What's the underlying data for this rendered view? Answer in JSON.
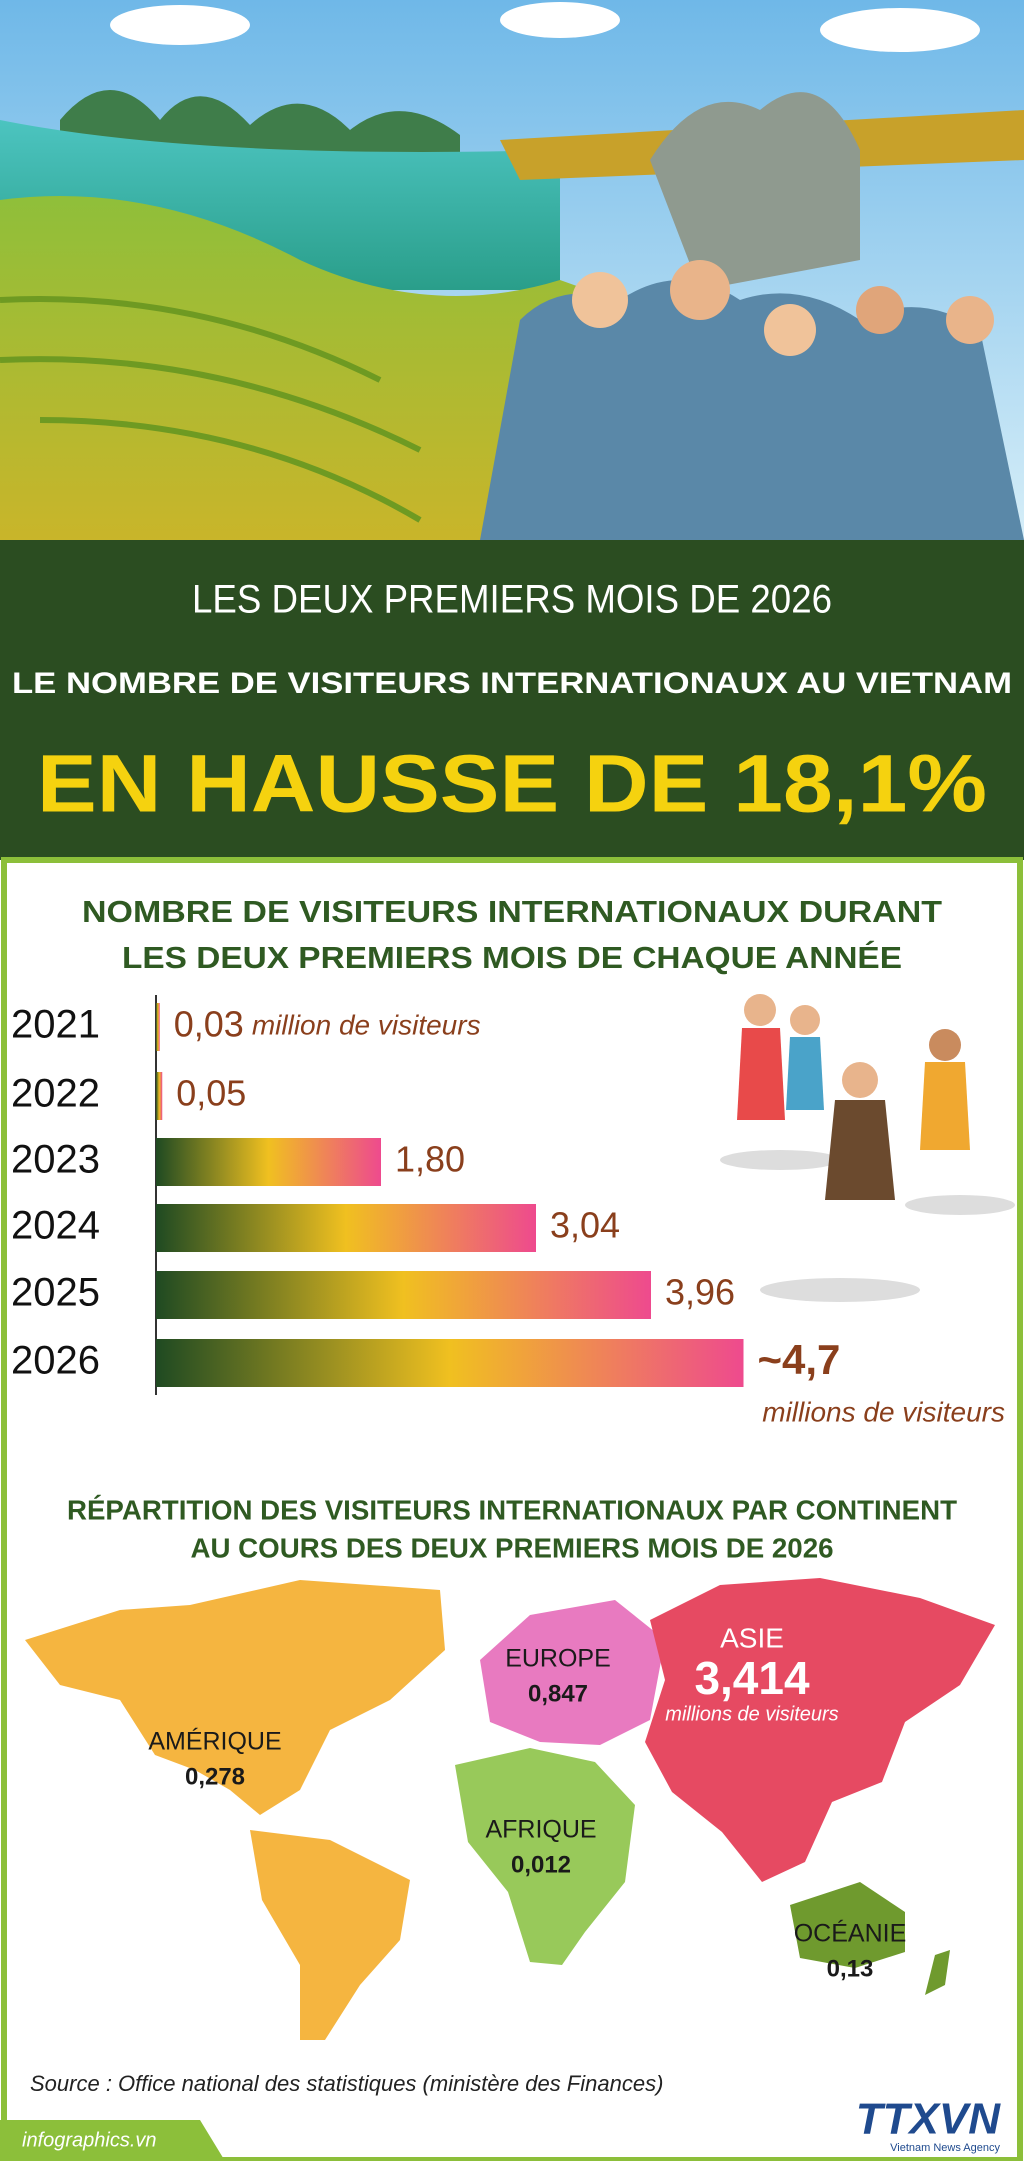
{
  "header": {
    "kicker": "LES DEUX PREMIERS MOIS DE 2026",
    "title": "LE NOMBRE DE VISITEURS INTERNATIONAUX AU VIETNAM",
    "headline": "EN HAUSSE DE 18,1%"
  },
  "chart_data": {
    "type": "bar",
    "orientation": "horizontal",
    "title": [
      "NOMBRE DE VISITEURS INTERNATIONAUX DURANT",
      "LES DEUX PREMIERS MOIS DE CHAQUE ANNÉE"
    ],
    "categories": [
      "2021",
      "2022",
      "2023",
      "2024",
      "2025",
      "2026"
    ],
    "values": [
      0.03,
      0.05,
      1.8,
      3.04,
      3.96,
      4.7
    ],
    "value_labels": [
      "0,03",
      "0,05",
      "1,80",
      "3,04",
      "3,96",
      "~4,7"
    ],
    "annotations": [
      "million de visiteurs",
      "millions de visiteurs"
    ],
    "colors": [
      "#1f4a22",
      "#f0c020",
      "#ee4a8e"
    ],
    "label_color": "#8a3f1c"
  },
  "map": {
    "title": [
      "RÉPARTITION DES VISITEURS INTERNATIONAUX PAR CONTINENT",
      "AU COURS DES DEUX PREMIERS MOIS DE 2026"
    ],
    "regions": [
      {
        "name": "AMÉRIQUE",
        "value": "0,278",
        "color": "#f5b540"
      },
      {
        "name": "EUROPE",
        "value": "0,847",
        "color": "#e87ac0"
      },
      {
        "name": "ASIE",
        "value": "3,414",
        "unit": "millions de visiteurs",
        "color": "#e64a62"
      },
      {
        "name": "AFRIQUE",
        "value": "0,012",
        "color": "#98c95a"
      },
      {
        "name": "OCÉANIE",
        "value": "0,13",
        "color": "#6f9a2e"
      }
    ]
  },
  "footer": {
    "source": "Source : Office national des statistiques (ministère des Finances)",
    "site": "infographics.vn",
    "logo": "TTXVN",
    "logo_sub": "Vietnam News Agency"
  }
}
